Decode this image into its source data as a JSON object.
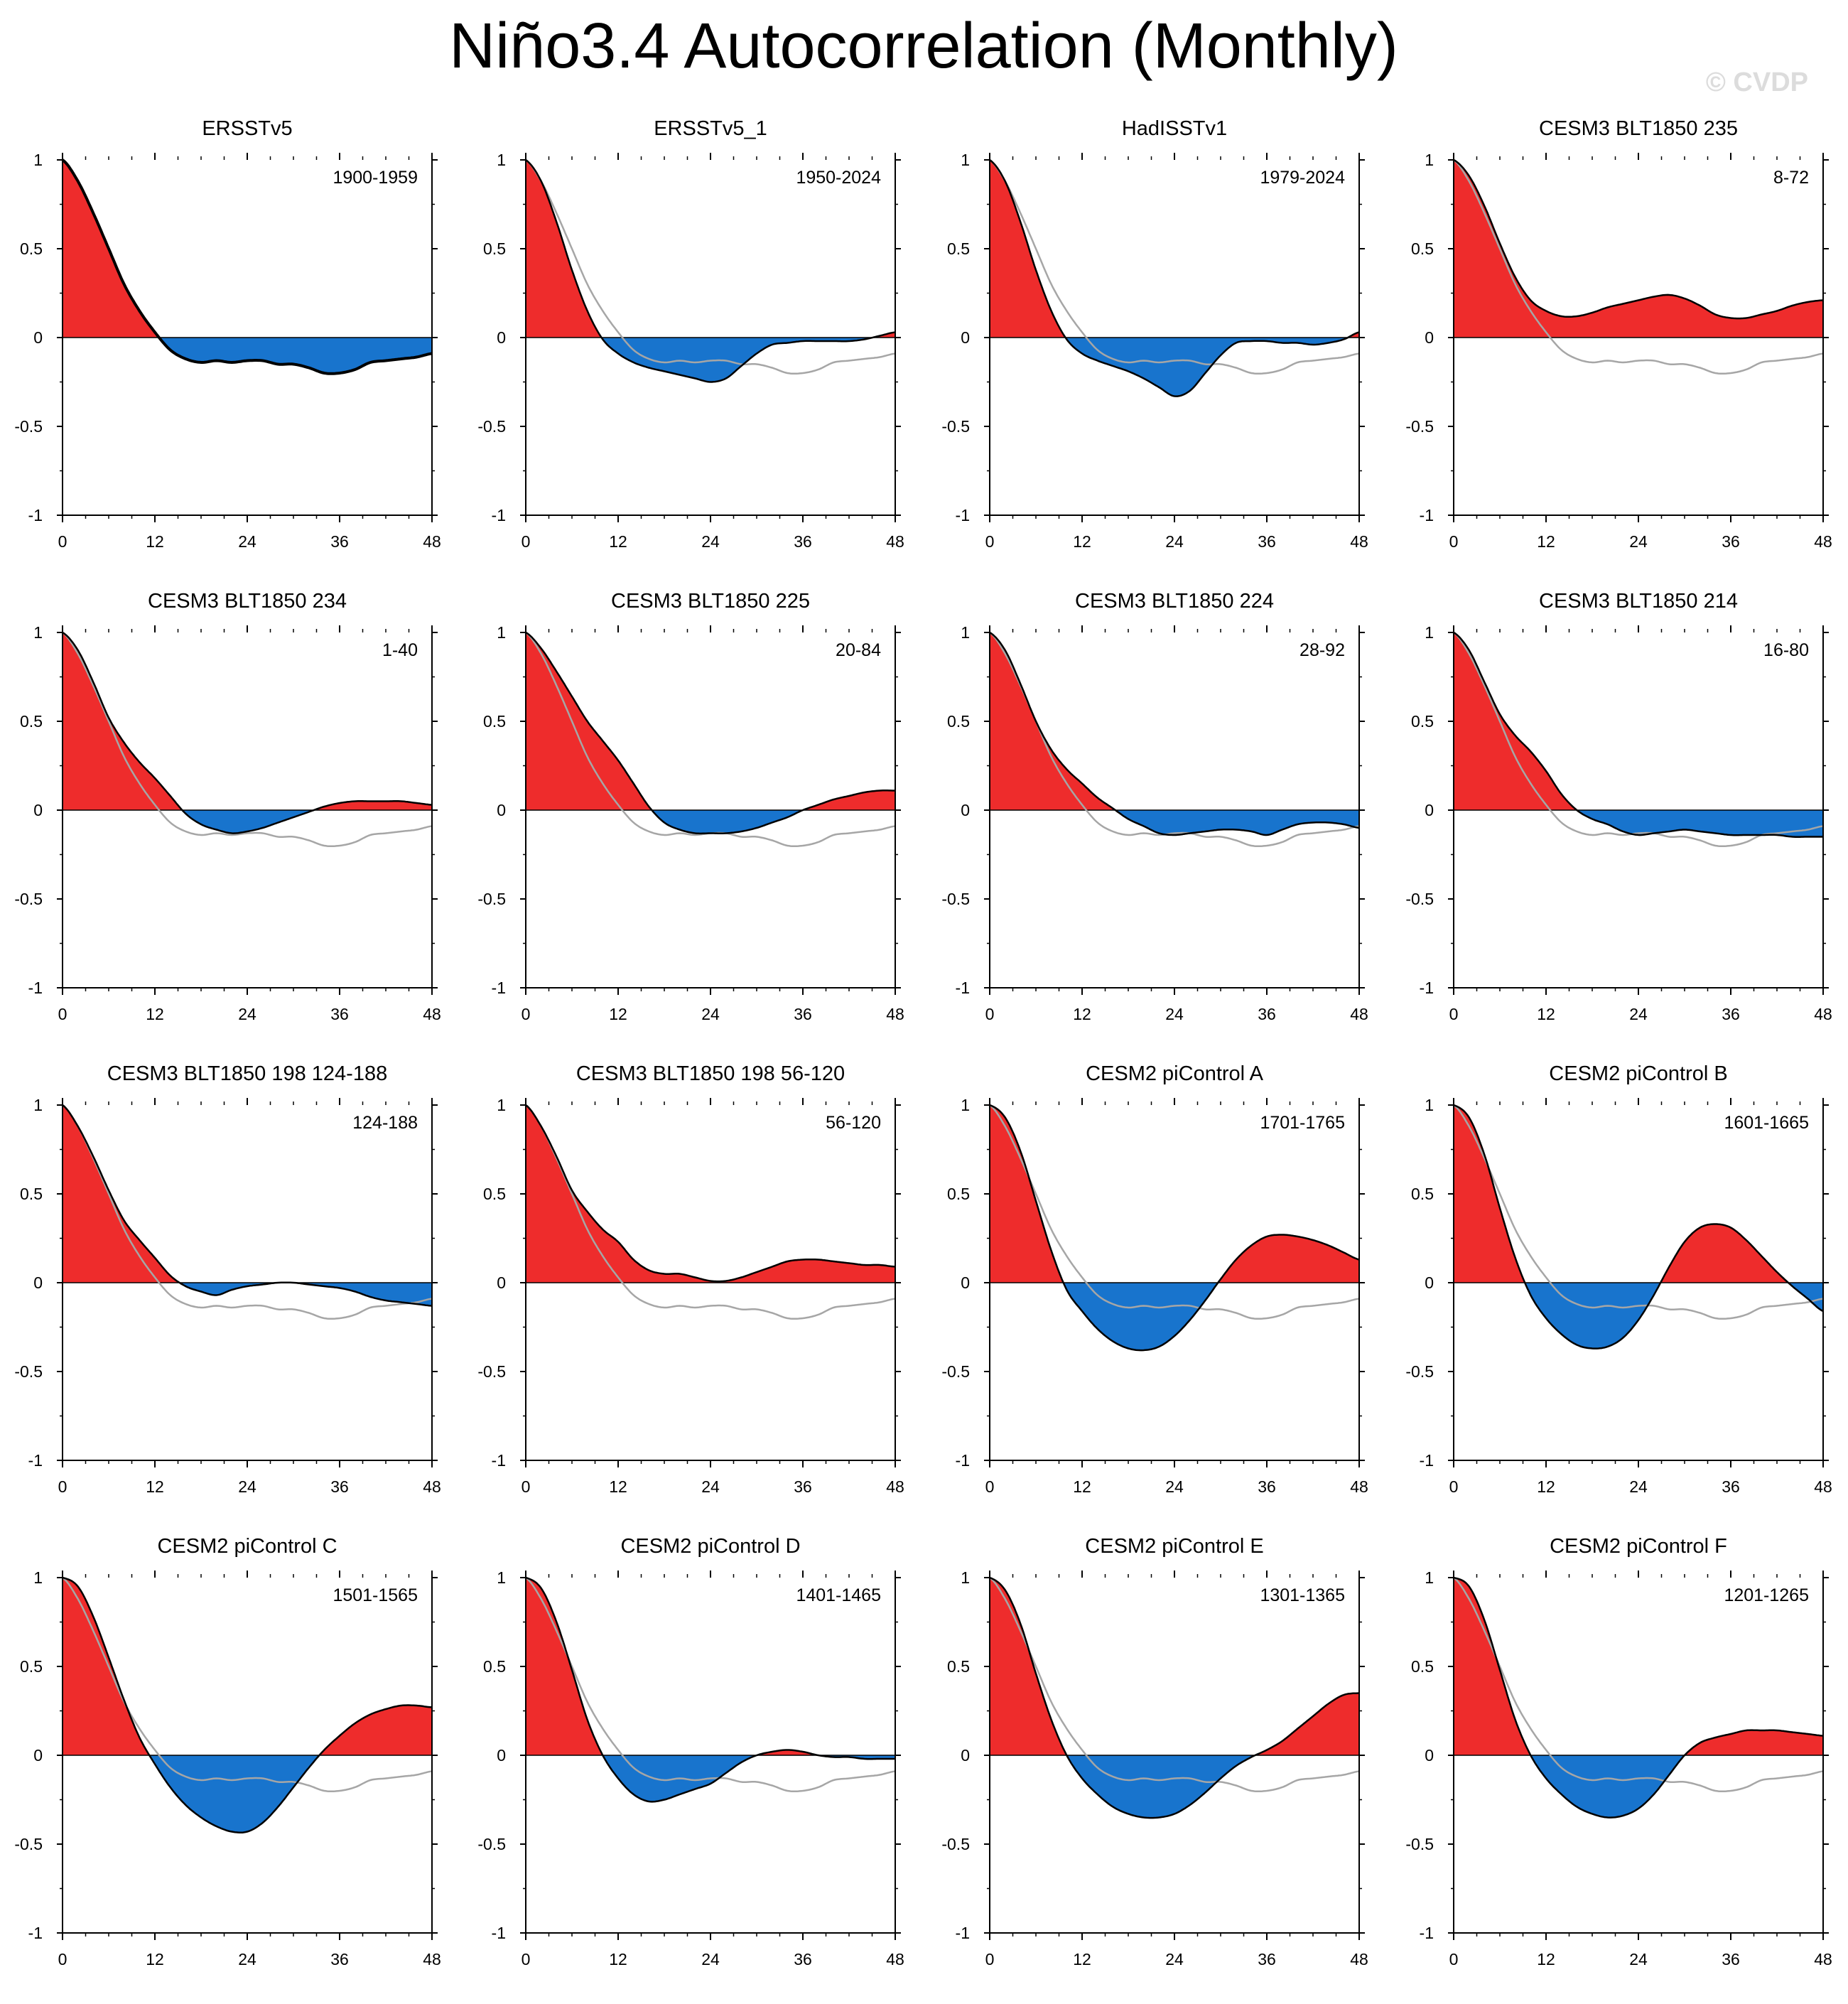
{
  "title": "Niño3.4 Autocorrelation (Monthly)",
  "watermark": "© CVDP",
  "colors": {
    "positive": "#ee2c2c",
    "negative": "#1874cd",
    "reference": "#a6a6a6",
    "line": "#000000"
  },
  "reference_panel": "ERSSTv5",
  "chart_data": {
    "type": "area",
    "x": [
      0,
      2,
      4,
      6,
      8,
      10,
      12,
      14,
      16,
      18,
      20,
      22,
      24,
      26,
      28,
      30,
      32,
      34,
      36,
      38,
      40,
      42,
      44,
      46,
      48
    ],
    "xticks": [
      0,
      12,
      24,
      36,
      48
    ],
    "xticklabels": [
      "0",
      "12",
      "24",
      "36",
      "48"
    ],
    "yticks": [
      1,
      0.5,
      0,
      -0.5,
      -1
    ],
    "yticklabels": [
      "1",
      "0.5",
      "0",
      "-0.5",
      "-1"
    ],
    "xlim": [
      0,
      48
    ],
    "ylim": [
      -1,
      1
    ],
    "panels": [
      {
        "title": "ERSSTv5",
        "period": "1900-1959",
        "values": [
          1.0,
          0.88,
          0.7,
          0.5,
          0.3,
          0.15,
          0.03,
          -0.07,
          -0.12,
          -0.14,
          -0.13,
          -0.14,
          -0.13,
          -0.13,
          -0.15,
          -0.15,
          -0.17,
          -0.2,
          -0.2,
          -0.18,
          -0.14,
          -0.13,
          -0.12,
          -0.11,
          -0.09
        ]
      },
      {
        "title": "ERSSTv5_1",
        "period": "1950-2024",
        "values": [
          1.0,
          0.88,
          0.65,
          0.38,
          0.15,
          -0.01,
          -0.09,
          -0.14,
          -0.17,
          -0.19,
          -0.21,
          -0.23,
          -0.25,
          -0.23,
          -0.16,
          -0.09,
          -0.04,
          -0.03,
          -0.02,
          -0.02,
          -0.02,
          -0.02,
          -0.01,
          0.01,
          0.03
        ]
      },
      {
        "title": "HadISSTv1",
        "period": "1979-2024",
        "values": [
          1.0,
          0.88,
          0.65,
          0.38,
          0.15,
          -0.01,
          -0.09,
          -0.13,
          -0.16,
          -0.19,
          -0.23,
          -0.28,
          -0.33,
          -0.3,
          -0.2,
          -0.1,
          -0.03,
          -0.02,
          -0.02,
          -0.03,
          -0.03,
          -0.04,
          -0.03,
          -0.01,
          0.03
        ]
      },
      {
        "title": "CESM3 BLT1850 235",
        "period": "8-72",
        "values": [
          1.0,
          0.91,
          0.74,
          0.53,
          0.34,
          0.21,
          0.15,
          0.12,
          0.12,
          0.14,
          0.17,
          0.19,
          0.21,
          0.23,
          0.24,
          0.22,
          0.18,
          0.13,
          0.11,
          0.11,
          0.13,
          0.15,
          0.18,
          0.2,
          0.21
        ]
      },
      {
        "title": "CESM3 BLT1850 234",
        "period": "1-40",
        "values": [
          1.0,
          0.9,
          0.72,
          0.52,
          0.38,
          0.27,
          0.18,
          0.08,
          -0.02,
          -0.08,
          -0.11,
          -0.13,
          -0.12,
          -0.1,
          -0.07,
          -0.04,
          -0.01,
          0.02,
          0.04,
          0.05,
          0.05,
          0.05,
          0.05,
          0.04,
          0.03
        ]
      },
      {
        "title": "CESM3 BLT1850 225",
        "period": "20-84",
        "values": [
          1.0,
          0.91,
          0.78,
          0.64,
          0.5,
          0.39,
          0.28,
          0.15,
          0.02,
          -0.07,
          -0.11,
          -0.13,
          -0.13,
          -0.13,
          -0.12,
          -0.1,
          -0.07,
          -0.04,
          0.0,
          0.03,
          0.06,
          0.08,
          0.1,
          0.11,
          0.11
        ]
      },
      {
        "title": "CESM3 BLT1850 224",
        "period": "28-92",
        "values": [
          1.0,
          0.9,
          0.71,
          0.5,
          0.34,
          0.23,
          0.15,
          0.07,
          0.01,
          -0.05,
          -0.09,
          -0.13,
          -0.14,
          -0.13,
          -0.12,
          -0.11,
          -0.11,
          -0.12,
          -0.14,
          -0.11,
          -0.08,
          -0.07,
          -0.07,
          -0.08,
          -0.1
        ]
      },
      {
        "title": "CESM3 BLT1850 214",
        "period": "16-80",
        "values": [
          1.0,
          0.9,
          0.72,
          0.54,
          0.42,
          0.33,
          0.22,
          0.09,
          0.0,
          -0.05,
          -0.08,
          -0.12,
          -0.14,
          -0.13,
          -0.12,
          -0.11,
          -0.12,
          -0.13,
          -0.14,
          -0.14,
          -0.14,
          -0.14,
          -0.15,
          -0.15,
          -0.15
        ]
      },
      {
        "title": "CESM3 BLT1850 198 124-188",
        "period": "124-188",
        "values": [
          1.0,
          0.88,
          0.71,
          0.52,
          0.35,
          0.24,
          0.14,
          0.04,
          -0.02,
          -0.05,
          -0.07,
          -0.04,
          -0.02,
          -0.01,
          0.0,
          0.0,
          -0.01,
          -0.02,
          -0.03,
          -0.05,
          -0.08,
          -0.1,
          -0.11,
          -0.12,
          -0.13
        ]
      },
      {
        "title": "CESM3 BLT1850 198 56-120",
        "period": "56-120",
        "values": [
          1.0,
          0.88,
          0.71,
          0.52,
          0.4,
          0.3,
          0.23,
          0.13,
          0.07,
          0.05,
          0.05,
          0.03,
          0.01,
          0.01,
          0.03,
          0.06,
          0.09,
          0.12,
          0.13,
          0.13,
          0.12,
          0.11,
          0.1,
          0.1,
          0.09
        ]
      },
      {
        "title": "CESM2 piControl A",
        "period": "1701-1765",
        "values": [
          1.0,
          0.93,
          0.74,
          0.46,
          0.18,
          -0.04,
          -0.16,
          -0.26,
          -0.33,
          -0.37,
          -0.38,
          -0.36,
          -0.3,
          -0.21,
          -0.1,
          0.02,
          0.13,
          0.21,
          0.26,
          0.27,
          0.26,
          0.24,
          0.21,
          0.17,
          0.13
        ]
      },
      {
        "title": "CESM2 piControl B",
        "period": "1601-1665",
        "values": [
          1.0,
          0.93,
          0.72,
          0.42,
          0.14,
          -0.07,
          -0.2,
          -0.29,
          -0.35,
          -0.37,
          -0.36,
          -0.31,
          -0.21,
          -0.07,
          0.09,
          0.23,
          0.31,
          0.33,
          0.31,
          0.24,
          0.15,
          0.06,
          -0.02,
          -0.09,
          -0.16
        ]
      },
      {
        "title": "CESM2 piControl C",
        "period": "1501-1565",
        "values": [
          1.0,
          0.95,
          0.78,
          0.55,
          0.31,
          0.1,
          -0.05,
          -0.18,
          -0.28,
          -0.35,
          -0.4,
          -0.43,
          -0.43,
          -0.38,
          -0.29,
          -0.18,
          -0.07,
          0.03,
          0.11,
          0.18,
          0.23,
          0.26,
          0.28,
          0.28,
          0.27
        ]
      },
      {
        "title": "CESM2 piControl D",
        "period": "1401-1465",
        "values": [
          1.0,
          0.94,
          0.75,
          0.48,
          0.2,
          0.0,
          -0.13,
          -0.22,
          -0.26,
          -0.25,
          -0.22,
          -0.19,
          -0.16,
          -0.1,
          -0.04,
          0.0,
          0.02,
          0.03,
          0.02,
          0.0,
          -0.01,
          -0.01,
          -0.02,
          -0.02,
          -0.02
        ]
      },
      {
        "title": "CESM2 piControl E",
        "period": "1301-1365",
        "values": [
          1.0,
          0.93,
          0.74,
          0.46,
          0.2,
          0.0,
          -0.13,
          -0.22,
          -0.29,
          -0.33,
          -0.35,
          -0.35,
          -0.33,
          -0.28,
          -0.21,
          -0.13,
          -0.06,
          -0.01,
          0.03,
          0.08,
          0.15,
          0.22,
          0.29,
          0.34,
          0.35
        ]
      },
      {
        "title": "CESM2 piControl F",
        "period": "1201-1265",
        "values": [
          1.0,
          0.95,
          0.76,
          0.48,
          0.2,
          0.0,
          -0.13,
          -0.22,
          -0.29,
          -0.33,
          -0.35,
          -0.34,
          -0.3,
          -0.22,
          -0.11,
          0.0,
          0.07,
          0.1,
          0.12,
          0.14,
          0.14,
          0.14,
          0.13,
          0.12,
          0.11
        ]
      }
    ]
  }
}
